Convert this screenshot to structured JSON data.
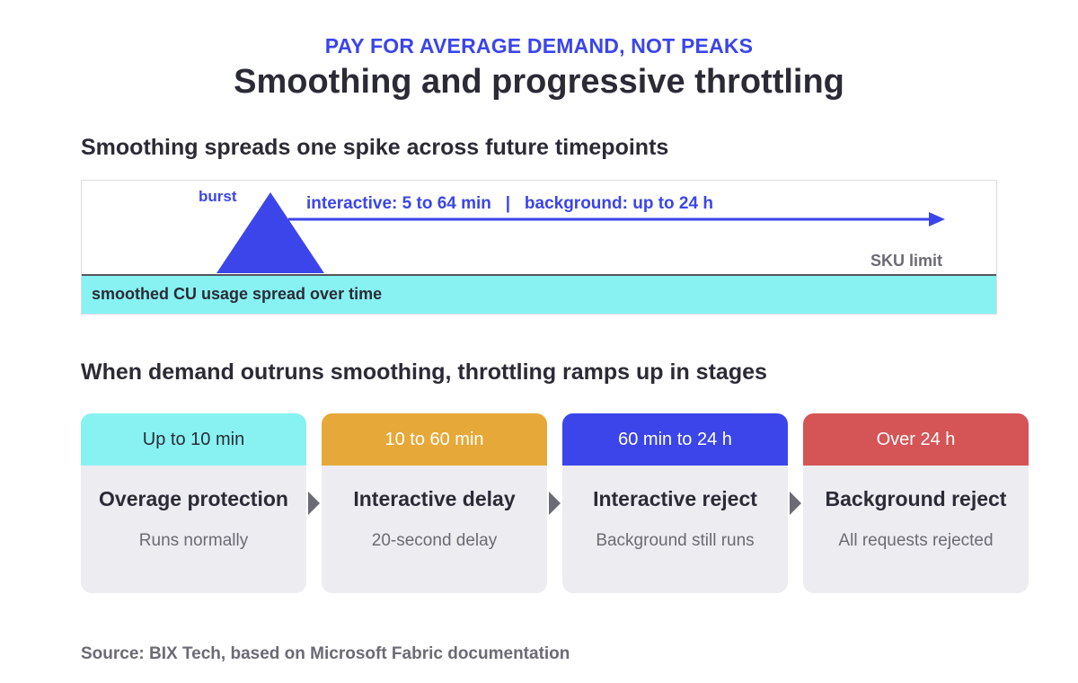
{
  "kicker": "PAY FOR AVERAGE DEMAND, NOT PEAKS",
  "title": "Smoothing and progressive throttling",
  "smoothing": {
    "heading": "Smoothing spreads one spike across future timepoints",
    "burst_label": "burst",
    "spread_label": "interactive: 5 to 64 min   |   background: up to 24 h",
    "sku_limit_label": "SKU limit",
    "smoothed_label": "smoothed CU usage spread over time",
    "colors": {
      "burst": "#3b45ea",
      "smoothed": "#88f2f2",
      "limit_line": "#54555f"
    }
  },
  "throttling": {
    "heading": "When demand outruns smoothing, throttling ramps up in stages",
    "stages": [
      {
        "window": "Up to 10 min",
        "name": "Overage protection",
        "effect": "Runs normally",
        "color": "#88f2f2",
        "text_color": "#2b2b36"
      },
      {
        "window": "10 to 60 min",
        "name": "Interactive delay",
        "effect": "20-second delay",
        "color": "#e6a838",
        "text_color": "#ffffff"
      },
      {
        "window": "60 min to 24 h",
        "name": "Interactive reject",
        "effect": "Background still runs",
        "color": "#3b45ea",
        "text_color": "#ffffff"
      },
      {
        "window": "Over 24 h",
        "name": "Background reject",
        "effect": "All requests rejected",
        "color": "#d55456",
        "text_color": "#ffffff"
      }
    ]
  },
  "source": "Source: BIX Tech, based on Microsoft Fabric documentation"
}
